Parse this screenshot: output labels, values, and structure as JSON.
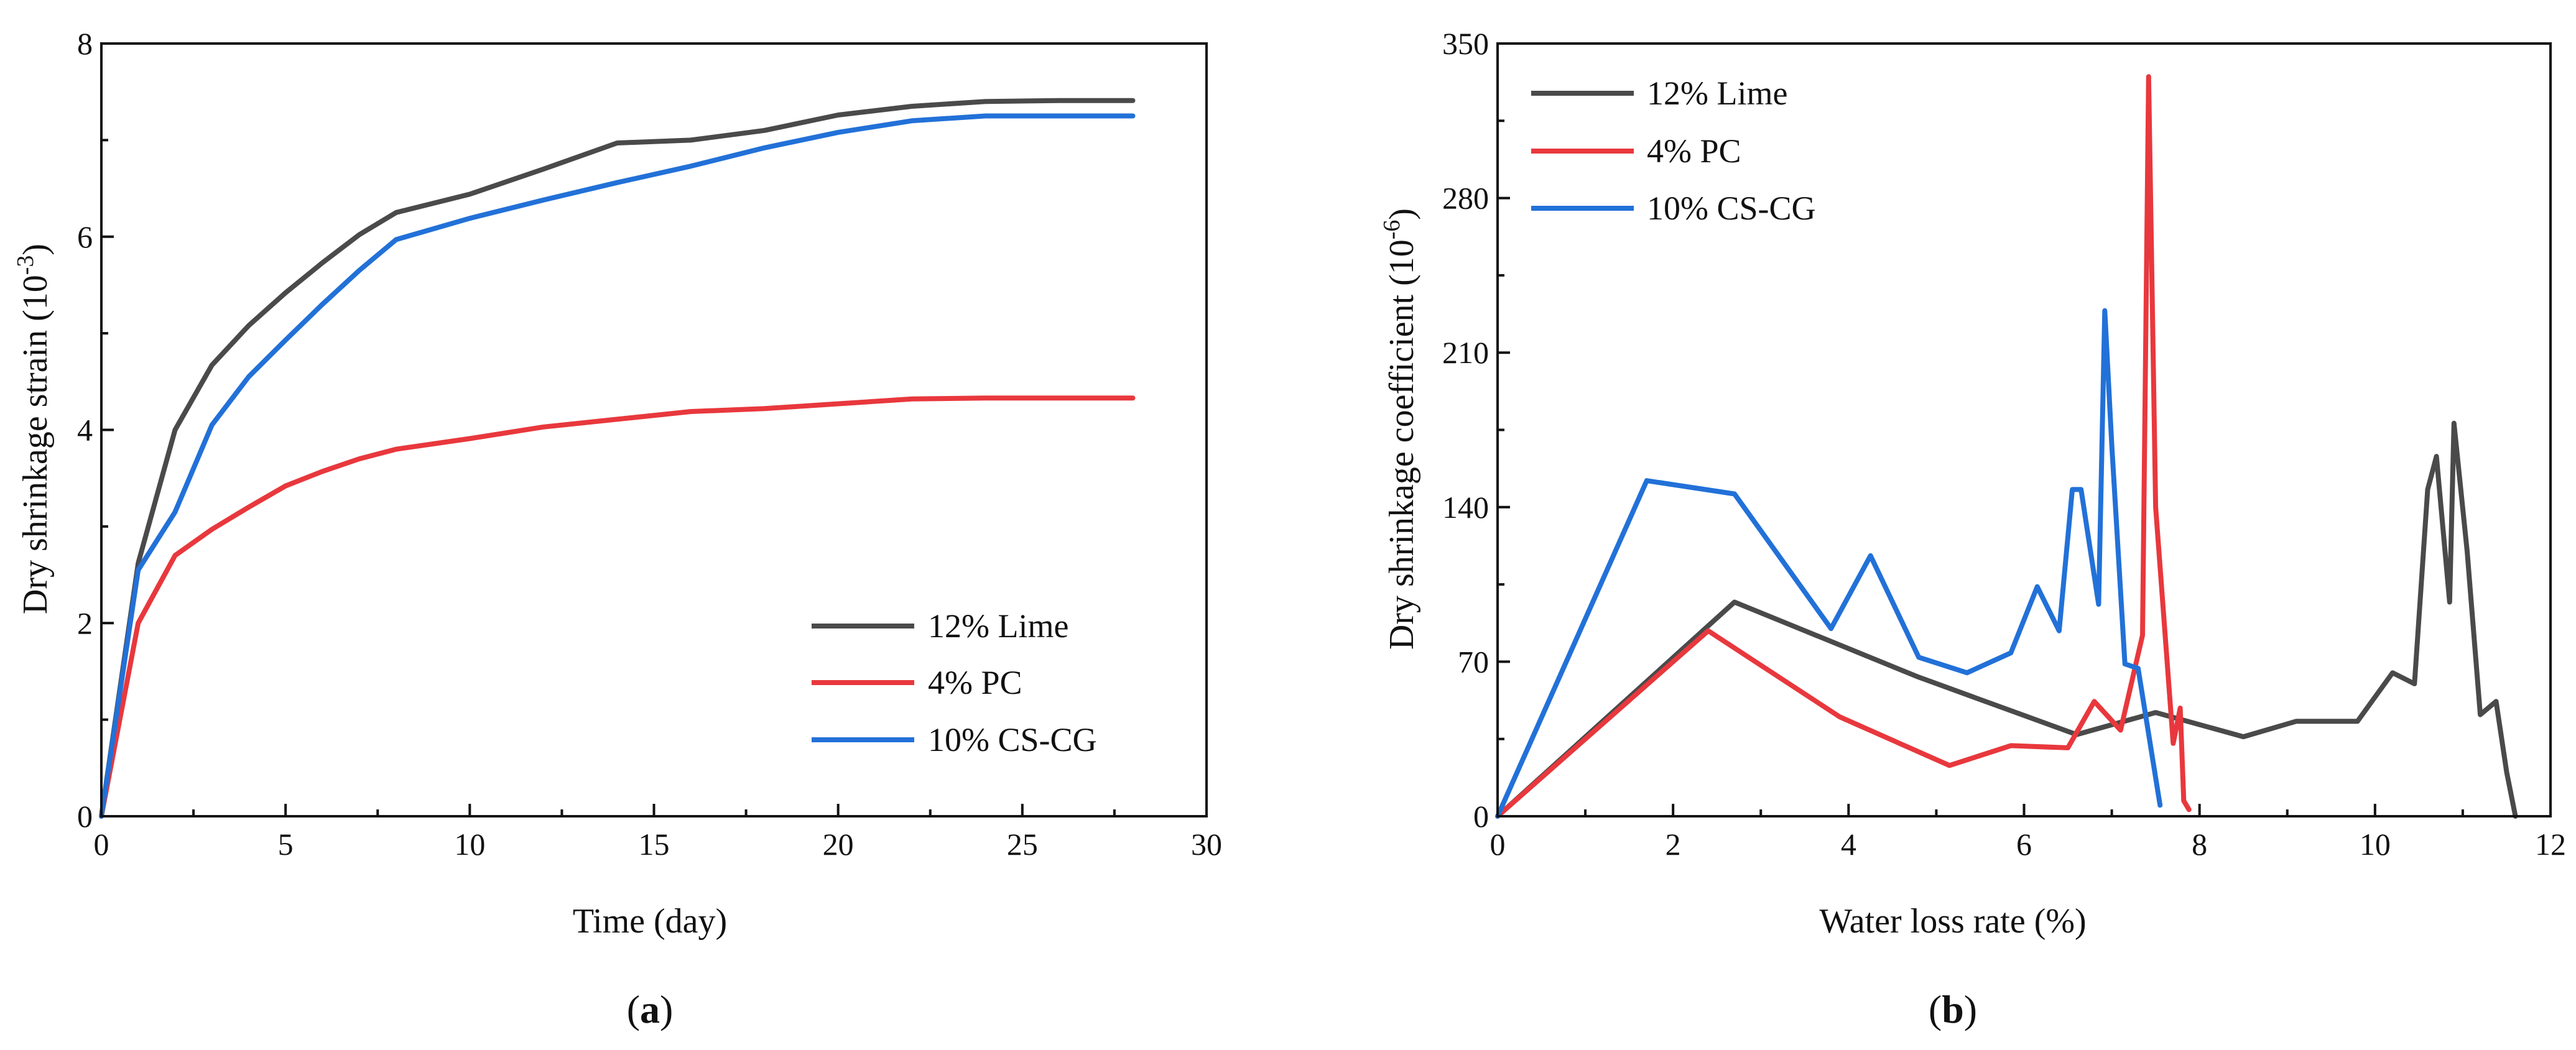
{
  "chart_data": [
    {
      "type": "line",
      "caption": "a",
      "xlabel": "Time (day)",
      "ylabel_main": "Dry shrinkage strain (10",
      "ylabel_exp": "-3",
      "ylabel_tail": ")",
      "xlim": [
        0,
        30
      ],
      "ylim": [
        0,
        8
      ],
      "xticks": [
        0,
        5,
        10,
        15,
        20,
        25,
        30
      ],
      "yticks": [
        0,
        2,
        4,
        6,
        8
      ],
      "legend_position": "bottom-right",
      "grid": false,
      "series": [
        {
          "name": "12% Lime",
          "color": "#4a4a4a",
          "points": [
            [
              0,
              0
            ],
            [
              1,
              2.62
            ],
            [
              2,
              4.0
            ],
            [
              3,
              4.67
            ],
            [
              4,
              5.08
            ],
            [
              5,
              5.42
            ],
            [
              6,
              5.73
            ],
            [
              7,
              6.02
            ],
            [
              8,
              6.25
            ],
            [
              10,
              6.44
            ],
            [
              12,
              6.7
            ],
            [
              14,
              6.97
            ],
            [
              16,
              7.0
            ],
            [
              18,
              7.1
            ],
            [
              20,
              7.26
            ],
            [
              22,
              7.35
            ],
            [
              24,
              7.4
            ],
            [
              26,
              7.41
            ],
            [
              28,
              7.41
            ]
          ]
        },
        {
          "name": "4% PC",
          "color": "#e8383d",
          "points": [
            [
              0,
              0
            ],
            [
              1,
              2.0
            ],
            [
              2,
              2.7
            ],
            [
              3,
              2.97
            ],
            [
              4,
              3.2
            ],
            [
              5,
              3.42
            ],
            [
              6,
              3.57
            ],
            [
              7,
              3.7
            ],
            [
              8,
              3.8
            ],
            [
              10,
              3.91
            ],
            [
              12,
              4.03
            ],
            [
              14,
              4.11
            ],
            [
              16,
              4.19
            ],
            [
              18,
              4.22
            ],
            [
              20,
              4.27
            ],
            [
              22,
              4.32
            ],
            [
              24,
              4.33
            ],
            [
              26,
              4.33
            ],
            [
              28,
              4.33
            ]
          ]
        },
        {
          "name": "10% CS-CG",
          "color": "#2271d8",
          "points": [
            [
              0,
              0
            ],
            [
              1,
              2.55
            ],
            [
              2,
              3.15
            ],
            [
              3,
              4.05
            ],
            [
              4,
              4.55
            ],
            [
              5,
              4.93
            ],
            [
              6,
              5.3
            ],
            [
              7,
              5.65
            ],
            [
              8,
              5.97
            ],
            [
              10,
              6.19
            ],
            [
              12,
              6.38
            ],
            [
              14,
              6.56
            ],
            [
              16,
              6.73
            ],
            [
              18,
              6.92
            ],
            [
              20,
              7.08
            ],
            [
              22,
              7.2
            ],
            [
              24,
              7.25
            ],
            [
              26,
              7.25
            ],
            [
              28,
              7.25
            ]
          ]
        }
      ]
    },
    {
      "type": "line",
      "caption": "b",
      "xlabel": "Water loss rate (%)",
      "ylabel_main": "Dry shrinkage coefficient (10",
      "ylabel_exp": "-6",
      "ylabel_tail": ")",
      "xlim": [
        0,
        12
      ],
      "ylim": [
        0,
        350
      ],
      "xticks": [
        0,
        2,
        4,
        6,
        8,
        10,
        12
      ],
      "yticks": [
        0,
        70,
        140,
        210,
        280,
        350
      ],
      "legend_position": "top-left",
      "grid": false,
      "series": [
        {
          "name": "12% Lime",
          "color": "#4a4a4a",
          "points": [
            [
              0,
              0
            ],
            [
              2.7,
              97
            ],
            [
              4.8,
              63
            ],
            [
              6.6,
              37
            ],
            [
              7.5,
              47
            ],
            [
              8.5,
              36
            ],
            [
              9.1,
              43
            ],
            [
              9.8,
              43
            ],
            [
              10.2,
              65
            ],
            [
              10.45,
              60
            ],
            [
              10.6,
              148
            ],
            [
              10.7,
              163
            ],
            [
              10.85,
              97
            ],
            [
              10.9,
              178
            ],
            [
              11.05,
              120
            ],
            [
              11.2,
              46
            ],
            [
              11.38,
              52
            ],
            [
              11.5,
              20
            ],
            [
              11.6,
              0
            ]
          ]
        },
        {
          "name": "4% PC",
          "color": "#e8383d",
          "points": [
            [
              0,
              0
            ],
            [
              2.4,
              84
            ],
            [
              3.9,
              45
            ],
            [
              5.15,
              23
            ],
            [
              5.85,
              32
            ],
            [
              6.5,
              31
            ],
            [
              6.8,
              52
            ],
            [
              7.1,
              39
            ],
            [
              7.35,
              82
            ],
            [
              7.42,
              335
            ],
            [
              7.5,
              140
            ],
            [
              7.7,
              33
            ],
            [
              7.78,
              49
            ],
            [
              7.82,
              7
            ],
            [
              7.88,
              3
            ]
          ]
        },
        {
          "name": "10% CS-CG",
          "color": "#2271d8",
          "points": [
            [
              0,
              0
            ],
            [
              1.7,
              152
            ],
            [
              2.7,
              146
            ],
            [
              3.8,
              85
            ],
            [
              4.25,
              118
            ],
            [
              4.8,
              72
            ],
            [
              5.35,
              65
            ],
            [
              5.85,
              74
            ],
            [
              6.15,
              104
            ],
            [
              6.4,
              84
            ],
            [
              6.55,
              148
            ],
            [
              6.65,
              148
            ],
            [
              6.85,
              96
            ],
            [
              6.92,
              229
            ],
            [
              7.0,
              168
            ],
            [
              7.15,
              69
            ],
            [
              7.3,
              67
            ],
            [
              7.55,
              5
            ]
          ]
        }
      ]
    }
  ]
}
